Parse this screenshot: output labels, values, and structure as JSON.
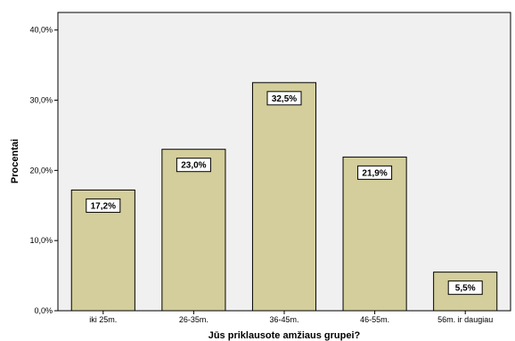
{
  "chart_data": {
    "type": "bar",
    "xlabel": "Jūs priklausote amžiaus grupei?",
    "ylabel": "Procentai",
    "categories": [
      "iki 25m.",
      "26-35m.",
      "36-45m.",
      "46-55m.",
      "56m. ir daugiau"
    ],
    "values": [
      17.2,
      23.0,
      32.5,
      21.9,
      5.5
    ],
    "data_labels": [
      "17,2%",
      "23,0%",
      "32,5%",
      "21,9%",
      "5,5%"
    ],
    "ylim": [
      0,
      42.5
    ],
    "yticks": [
      0,
      10,
      20,
      30,
      40
    ],
    "ytick_labels": [
      "0,0%",
      "10,0%",
      "20,0%",
      "30,0%",
      "40,0%"
    ],
    "grid": false,
    "legend": "none",
    "colors": {
      "plot_background": "#f0f0f0",
      "bar_fill": "#d3ce9b",
      "bar_stroke": "#000000",
      "label_box": "#ffffff"
    }
  }
}
